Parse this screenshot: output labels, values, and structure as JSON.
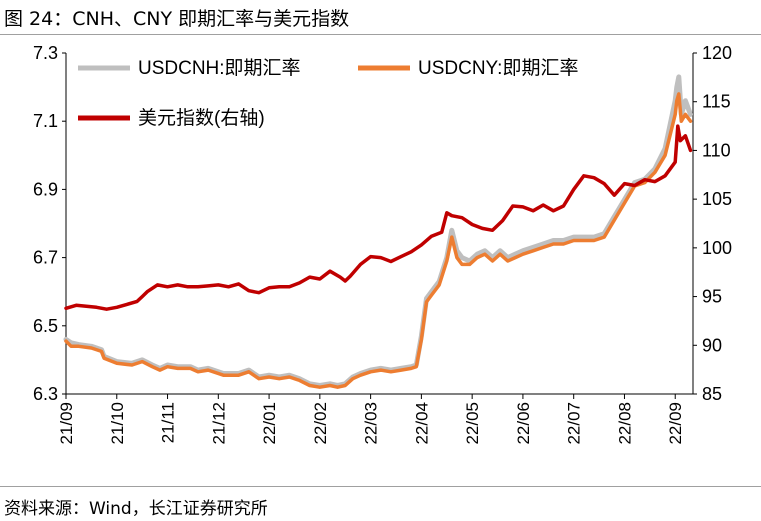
{
  "figure": {
    "title": "图 24：CNH、CNY 即期汇率与美元指数",
    "source": "资料来源：Wind，长江证券研究所"
  },
  "chart_data": {
    "type": "line",
    "title": "CNH、CNY 即期汇率与美元指数",
    "x": [
      "21/09",
      "21/10",
      "21/11",
      "21/12",
      "22/01",
      "22/02",
      "22/03",
      "22/04",
      "22/05",
      "22/06",
      "22/07",
      "22/08",
      "22/09"
    ],
    "y_left": {
      "ticks": [
        "7.3",
        "7.1",
        "6.9",
        "6.7",
        "6.5",
        "6.3"
      ],
      "lim": [
        6.3,
        7.3
      ]
    },
    "y_right": {
      "ticks": [
        "120",
        "115",
        "110",
        "105",
        "100",
        "95",
        "90",
        "85"
      ],
      "lim": [
        85,
        120
      ]
    },
    "legend_position": "top-left",
    "series": [
      {
        "name": "USDCNH:即期汇率",
        "axis": "left",
        "color": "#bfbfbf",
        "x": [
          0,
          0.1,
          0.25,
          0.5,
          0.7,
          0.75,
          1.0,
          1.3,
          1.5,
          1.7,
          1.85,
          2.0,
          2.2,
          2.45,
          2.6,
          2.8,
          3.1,
          3.4,
          3.6,
          3.8,
          4.0,
          4.2,
          4.4,
          4.6,
          4.8,
          5.0,
          5.2,
          5.35,
          5.5,
          5.65,
          5.8,
          6.0,
          6.2,
          6.4,
          6.6,
          6.8,
          6.9,
          7.0,
          7.1,
          7.2,
          7.35,
          7.5,
          7.6,
          7.7,
          7.8,
          7.95,
          8.1,
          8.25,
          8.4,
          8.55,
          8.7,
          8.85,
          9.0,
          9.2,
          9.4,
          9.6,
          9.8,
          10.0,
          10.2,
          10.4,
          10.6,
          10.8,
          11.0,
          11.2,
          11.4,
          11.6,
          11.8,
          12.0,
          12.03,
          12.07,
          12.12,
          12.2,
          12.3
        ],
        "y": [
          6.46,
          6.45,
          6.445,
          6.44,
          6.43,
          6.41,
          6.395,
          6.39,
          6.4,
          6.385,
          6.375,
          6.385,
          6.38,
          6.38,
          6.37,
          6.375,
          6.36,
          6.36,
          6.37,
          6.35,
          6.355,
          6.35,
          6.355,
          6.345,
          6.33,
          6.325,
          6.33,
          6.325,
          6.33,
          6.35,
          6.36,
          6.37,
          6.375,
          6.37,
          6.375,
          6.38,
          6.385,
          6.47,
          6.58,
          6.6,
          6.63,
          6.7,
          6.78,
          6.72,
          6.7,
          6.69,
          6.71,
          6.72,
          6.7,
          6.72,
          6.7,
          6.71,
          6.72,
          6.73,
          6.74,
          6.75,
          6.75,
          6.76,
          6.76,
          6.76,
          6.77,
          6.82,
          6.87,
          6.92,
          6.93,
          6.96,
          7.02,
          7.16,
          7.2,
          7.23,
          7.12,
          7.16,
          7.12
        ]
      },
      {
        "name": "USDCNY:即期汇率",
        "axis": "left",
        "color": "#ed7d31",
        "x": [
          0,
          0.1,
          0.25,
          0.5,
          0.7,
          0.75,
          1.0,
          1.3,
          1.5,
          1.7,
          1.85,
          2.0,
          2.2,
          2.45,
          2.6,
          2.8,
          3.1,
          3.4,
          3.6,
          3.8,
          4.0,
          4.2,
          4.4,
          4.6,
          4.8,
          5.0,
          5.2,
          5.35,
          5.5,
          5.65,
          5.8,
          6.0,
          6.2,
          6.4,
          6.6,
          6.8,
          6.9,
          7.0,
          7.1,
          7.2,
          7.35,
          7.5,
          7.6,
          7.7,
          7.8,
          7.95,
          8.1,
          8.25,
          8.4,
          8.55,
          8.7,
          8.85,
          9.0,
          9.2,
          9.4,
          9.6,
          9.8,
          10.0,
          10.2,
          10.4,
          10.6,
          10.8,
          11.0,
          11.2,
          11.4,
          11.6,
          11.8,
          12.0,
          12.03,
          12.07,
          12.12,
          12.2,
          12.3
        ],
        "y": [
          6.455,
          6.44,
          6.44,
          6.435,
          6.425,
          6.405,
          6.39,
          6.385,
          6.395,
          6.38,
          6.37,
          6.38,
          6.375,
          6.375,
          6.365,
          6.37,
          6.355,
          6.355,
          6.365,
          6.345,
          6.35,
          6.345,
          6.35,
          6.34,
          6.325,
          6.32,
          6.325,
          6.32,
          6.325,
          6.345,
          6.355,
          6.365,
          6.37,
          6.365,
          6.37,
          6.375,
          6.38,
          6.46,
          6.57,
          6.59,
          6.62,
          6.69,
          6.76,
          6.7,
          6.68,
          6.68,
          6.7,
          6.71,
          6.69,
          6.71,
          6.69,
          6.7,
          6.71,
          6.72,
          6.73,
          6.74,
          6.74,
          6.75,
          6.75,
          6.75,
          6.76,
          6.81,
          6.86,
          6.91,
          6.92,
          6.95,
          7.0,
          7.12,
          7.16,
          7.18,
          7.1,
          7.12,
          7.1
        ]
      },
      {
        "name": "美元指数(右轴)",
        "axis": "right",
        "color": "#c00000",
        "x": [
          0,
          0.2,
          0.4,
          0.6,
          0.8,
          1.0,
          1.2,
          1.4,
          1.5,
          1.6,
          1.8,
          2.0,
          2.2,
          2.4,
          2.6,
          2.8,
          3.0,
          3.2,
          3.4,
          3.6,
          3.8,
          4.0,
          4.2,
          4.4,
          4.6,
          4.8,
          5.0,
          5.2,
          5.4,
          5.5,
          5.6,
          5.8,
          6.0,
          6.2,
          6.4,
          6.6,
          6.8,
          7.0,
          7.2,
          7.4,
          7.5,
          7.6,
          7.8,
          8.0,
          8.2,
          8.4,
          8.6,
          8.8,
          9.0,
          9.2,
          9.4,
          9.6,
          9.8,
          10.0,
          10.2,
          10.4,
          10.6,
          10.8,
          11.0,
          11.2,
          11.4,
          11.6,
          11.8,
          12.0,
          12.05,
          12.1,
          12.2,
          12.3
        ],
        "y": [
          93.8,
          94.1,
          94.0,
          93.9,
          93.7,
          93.9,
          94.2,
          94.5,
          95.0,
          95.5,
          96.2,
          96.0,
          96.2,
          96.0,
          96.0,
          96.1,
          96.2,
          96.0,
          96.3,
          95.6,
          95.4,
          95.9,
          96.0,
          96.0,
          96.4,
          97.0,
          96.8,
          97.6,
          97.0,
          96.6,
          97.1,
          98.3,
          99.1,
          99.0,
          98.6,
          99.1,
          99.6,
          100.3,
          101.2,
          101.6,
          103.6,
          103.3,
          103.1,
          102.4,
          102.0,
          101.8,
          102.8,
          104.3,
          104.2,
          103.8,
          104.4,
          103.8,
          104.3,
          106.0,
          107.4,
          107.2,
          106.6,
          105.4,
          106.6,
          106.4,
          107.0,
          106.8,
          107.4,
          108.8,
          112.5,
          111.0,
          111.5,
          110.0
        ]
      }
    ]
  }
}
